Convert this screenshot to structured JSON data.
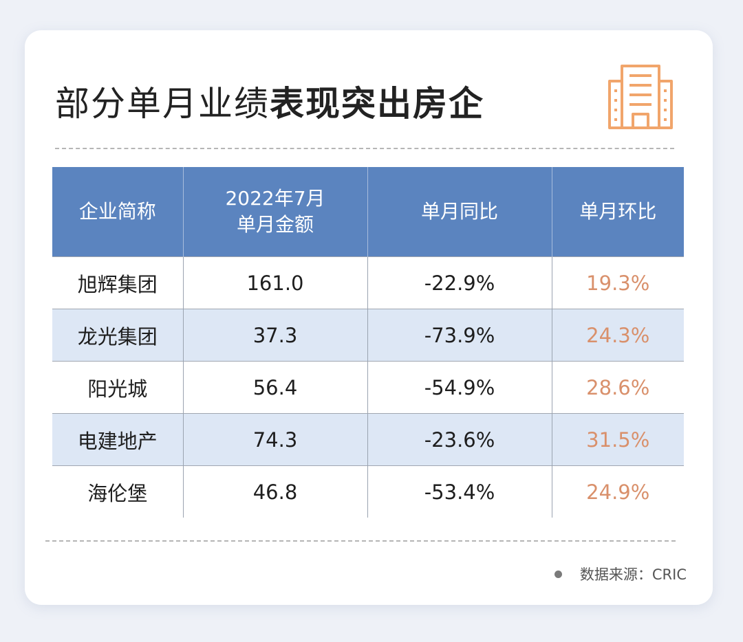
{
  "title": {
    "light": "部分单月业绩",
    "bold": "表现突出房企"
  },
  "icons": {
    "header": "building-icon",
    "accent_color": "#f1a56b"
  },
  "chart_data": {
    "type": "table",
    "columns": [
      "企业简称",
      "2022年7月\n单月金额",
      "单月同比",
      "单月环比"
    ],
    "rows": [
      {
        "company": "旭辉集团",
        "amount": "161.0",
        "yoy": "-22.9%",
        "mom": "19.3%"
      },
      {
        "company": "龙光集团",
        "amount": "37.3",
        "yoy": "-73.9%",
        "mom": "24.3%"
      },
      {
        "company": "阳光城",
        "amount": "56.4",
        "yoy": "-54.9%",
        "mom": "28.6%"
      },
      {
        "company": "电建地产",
        "amount": "74.3",
        "yoy": "-23.6%",
        "mom": "31.5%"
      },
      {
        "company": "海伦堡",
        "amount": "46.8",
        "yoy": "-53.4%",
        "mom": "24.9%"
      }
    ],
    "header_color": "#5b84bf",
    "alt_row_color": "#dde7f5",
    "mom_color": "#d9906b"
  },
  "footer": {
    "source": "数据来源：CRIC"
  }
}
